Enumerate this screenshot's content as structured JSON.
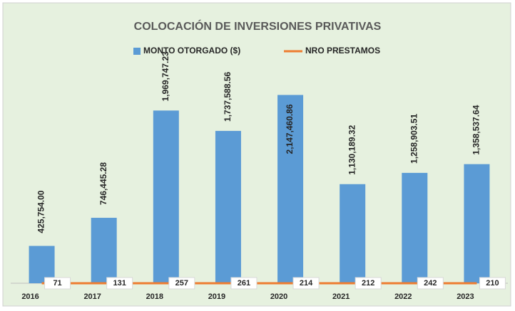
{
  "chart_data": {
    "type": "bar-line",
    "title": "COLOCACIÓN DE INVERSIONES PRIVATIVAS",
    "categories": [
      "2016",
      "2017",
      "2018",
      "2019",
      "2020",
      "2021",
      "2022",
      "2023"
    ],
    "series": [
      {
        "name": "MONTO OTORGADO ($)",
        "type": "bar",
        "color": "#5b9bd5",
        "values": [
          425754.0,
          746445.28,
          1969747.23,
          1737588.56,
          2147460.86,
          1130189.32,
          1258903.51,
          1358537.64
        ],
        "value_labels": [
          "425,754.00",
          "746,445.28",
          "1,969,747.23",
          "1,737,588.56",
          "2,147,460.86",
          "1,130,189.32",
          "1,258,903.51",
          "1,358,537.64"
        ]
      },
      {
        "name": "NRO PRESTAMOS",
        "type": "line",
        "color": "#ed7d31",
        "values": [
          71,
          131,
          257,
          261,
          214,
          212,
          242,
          210
        ]
      }
    ],
    "ylim": [
      0,
      2500000
    ],
    "legend": "top"
  }
}
